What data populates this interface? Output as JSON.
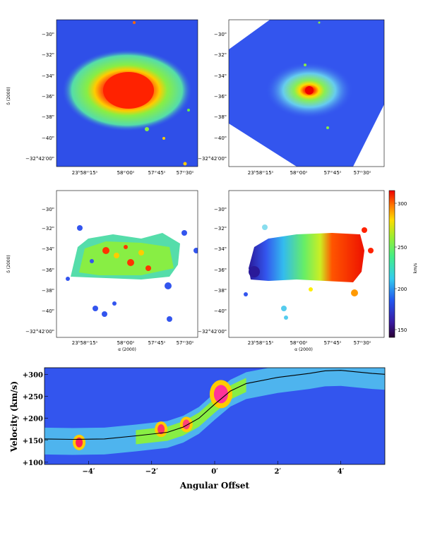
{
  "panels": {
    "dec_ticks": [
      "−30\"",
      "−32\"",
      "−34\"",
      "−36\"",
      "−38\"",
      "−40\"",
      "−32°42′00\""
    ],
    "ra_ticks": [
      "23ʰ58ᵐ15ˢ",
      "58ᵐ00ˢ",
      "57ᵐ45ˢ",
      "57ᵐ30ˢ"
    ],
    "dec_label": "δ (2000)",
    "ra_label": "α (2000)"
  },
  "colorbar": {
    "label": "km/s",
    "ticks": [
      "300",
      "250",
      "200",
      "150"
    ],
    "range": [
      135,
      320
    ]
  },
  "colors": {
    "map_background": "#3355ee",
    "red": "#ff2200",
    "green": "#66ee44",
    "cyan": "#55ddee"
  },
  "chart_data": {
    "type": "heatmap",
    "title": "",
    "xlabel": "Angular Offset",
    "ylabel": "Velocity (km/s)",
    "x_tick_labels": [
      "−4′",
      "−2′",
      "0′",
      "2′",
      "4′"
    ],
    "y_tick_labels": [
      "+100",
      "+150",
      "+200",
      "+250",
      "+300"
    ],
    "xlim": [
      -5.4,
      5.4
    ],
    "ylim": [
      95,
      315
    ],
    "rotation_curve": {
      "x": [
        -5.4,
        -4.5,
        -3.5,
        -2.5,
        -1.5,
        -1.0,
        -0.5,
        0.0,
        0.5,
        1.0,
        2.0,
        3.0,
        3.5,
        4.0,
        5.0,
        5.4
      ],
      "y": [
        153,
        152,
        153,
        160,
        168,
        180,
        200,
        232,
        262,
        279,
        293,
        302,
        308,
        309,
        302,
        300
      ]
    },
    "emission_peaks": [
      {
        "x": -4.3,
        "y": 145
      },
      {
        "x": -1.7,
        "y": 175
      },
      {
        "x": -0.9,
        "y": 186
      },
      {
        "x": 0.2,
        "y": 255
      }
    ]
  }
}
